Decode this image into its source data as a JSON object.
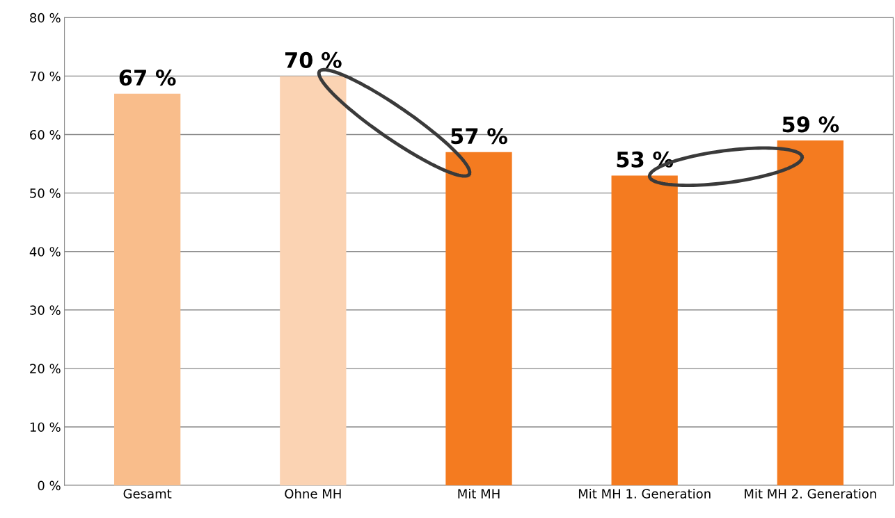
{
  "chart_data": {
    "type": "bar",
    "categories": [
      "Gesamt",
      "Ohne MH",
      "Mit MH",
      "Mit MH 1. Generation",
      "Mit MH 2. Generation"
    ],
    "values": [
      67,
      70,
      57,
      53,
      59
    ],
    "colors": [
      "#f9bd8b",
      "#fbd3b3",
      "#f47b20",
      "#f47b20",
      "#f47b20"
    ],
    "value_labels": [
      "67 %",
      "70 %",
      "57 %",
      "53 %",
      "59 %"
    ],
    "ylim": [
      0,
      80
    ],
    "yticks": [
      {
        "value": 0,
        "label": "0 %"
      },
      {
        "value": 10,
        "label": "10 %"
      },
      {
        "value": 20,
        "label": "20 %"
      },
      {
        "value": 30,
        "label": "30 %"
      },
      {
        "value": 40,
        "label": "40 %"
      },
      {
        "value": 50,
        "label": "50 %"
      },
      {
        "value": 60,
        "label": "60 %"
      },
      {
        "value": 70,
        "label": "70 %"
      },
      {
        "value": 80,
        "label": "80 %"
      }
    ],
    "grid": "y",
    "legend": false
  }
}
